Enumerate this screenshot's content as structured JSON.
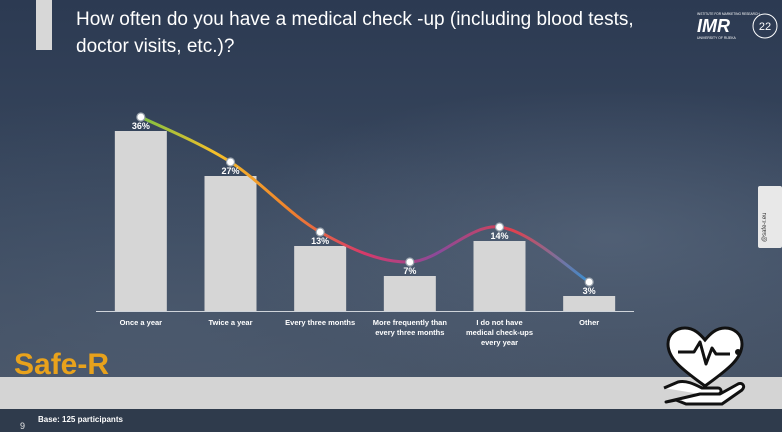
{
  "slide": {
    "title": "How often do you have a medical check -up (including blood tests, doctor visits, etc.)?",
    "page_number": "9",
    "base_note": "Base: 125 participants",
    "logo_safer": "Safe-R",
    "logo_imr": "IMR",
    "logo_imr_small": "INSTITUTE FOR MARKETING RESEARCH",
    "logo_imr_uni": "UNIVERSITY OF RIJEKA",
    "logo_imr_years": "22",
    "side_tab": "@safe-r.eu",
    "icons": [
      "heart-hand-icon"
    ],
    "colors": {
      "bar": "#d6d6d6",
      "text": "#ffffff",
      "background": "#35425a"
    }
  },
  "chart_data": {
    "type": "bar",
    "title": "How often do you have a medical check -up (including blood tests, doctor visits, etc.)?",
    "categories": [
      [
        "Once a year"
      ],
      [
        "Twice a year"
      ],
      [
        "Every three months"
      ],
      [
        "More frequently than",
        "every three months"
      ],
      [
        "I do not have",
        "medical check-ups",
        "every year"
      ],
      [
        "Other"
      ]
    ],
    "values": [
      36,
      27,
      13,
      7,
      14,
      3
    ],
    "data_labels": [
      "36%",
      "27%",
      "13%",
      "7%",
      "14%",
      "3%"
    ],
    "unit": "%",
    "ylim": [
      0,
      40
    ],
    "grid": false,
    "trend_line": true,
    "trend_colors": [
      "#7cc142",
      "#f5c02a",
      "#f0822c",
      "#d63a6a",
      "#8a4a9a",
      "#e0414e",
      "#3a8fd0"
    ]
  }
}
